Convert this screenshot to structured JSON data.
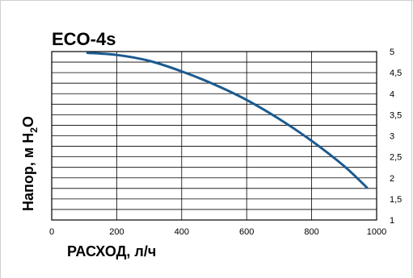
{
  "chart_data": {
    "type": "line",
    "title": "ECO-4s",
    "xlabel": "РАСХОД, л/ч",
    "ylabel_parts": [
      "Напор, м H",
      "2",
      "O"
    ],
    "xlim": [
      0,
      1000
    ],
    "ylim": [
      1,
      5
    ],
    "x_ticks": [
      "0",
      "200",
      "400",
      "600",
      "800",
      "1000"
    ],
    "x_tick_values": [
      0,
      200,
      400,
      600,
      800,
      1000
    ],
    "y_ticks": [
      "1",
      "1,5",
      "2",
      "2,5",
      "3",
      "3,5",
      "4",
      "4,5",
      "5"
    ],
    "y_tick_values": [
      1,
      1.5,
      2,
      2.5,
      3,
      3.5,
      4,
      4.5,
      5
    ],
    "y_axis_side": "right",
    "grid": true,
    "series": [
      {
        "color": "#1a5a8f",
        "x": [
          110,
          200,
          300,
          400,
          500,
          600,
          700,
          800,
          900,
          970
        ],
        "y": [
          4.97,
          4.92,
          4.78,
          4.53,
          4.22,
          3.85,
          3.4,
          2.88,
          2.28,
          1.77
        ]
      }
    ]
  }
}
